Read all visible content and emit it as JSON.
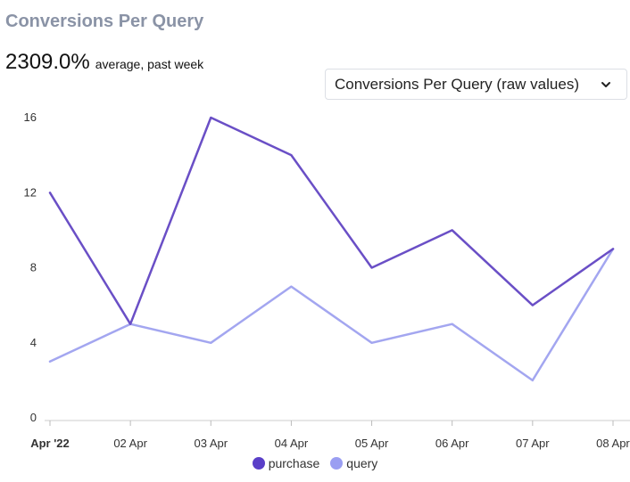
{
  "header": {
    "title": "Conversions Per Query",
    "value": "2309.0%",
    "caption": "average, past week"
  },
  "selector": {
    "label": "Conversions Per Query (raw values)",
    "icon": "chevron-down-icon"
  },
  "chart_data": {
    "type": "line",
    "categories": [
      "Apr '22",
      "02 Apr",
      "03 Apr",
      "04 Apr",
      "05 Apr",
      "06 Apr",
      "07 Apr",
      "08 Apr"
    ],
    "series": [
      {
        "name": "purchase",
        "color": "#6a4fc6",
        "values": [
          12,
          5,
          16,
          14,
          8,
          10,
          6,
          9
        ]
      },
      {
        "name": "query",
        "color": "#a3a6f0",
        "values": [
          3,
          5,
          4,
          7,
          4,
          5,
          2,
          9
        ]
      }
    ],
    "yticks": [
      0,
      4,
      8,
      12,
      16
    ],
    "ylim": [
      0,
      16
    ],
    "grid": false,
    "legend": "bottom-center"
  },
  "legend": {
    "items": [
      {
        "label": "purchase",
        "color": "#5a3fc8"
      },
      {
        "label": "query",
        "color": "#9a9ef2"
      }
    ]
  }
}
